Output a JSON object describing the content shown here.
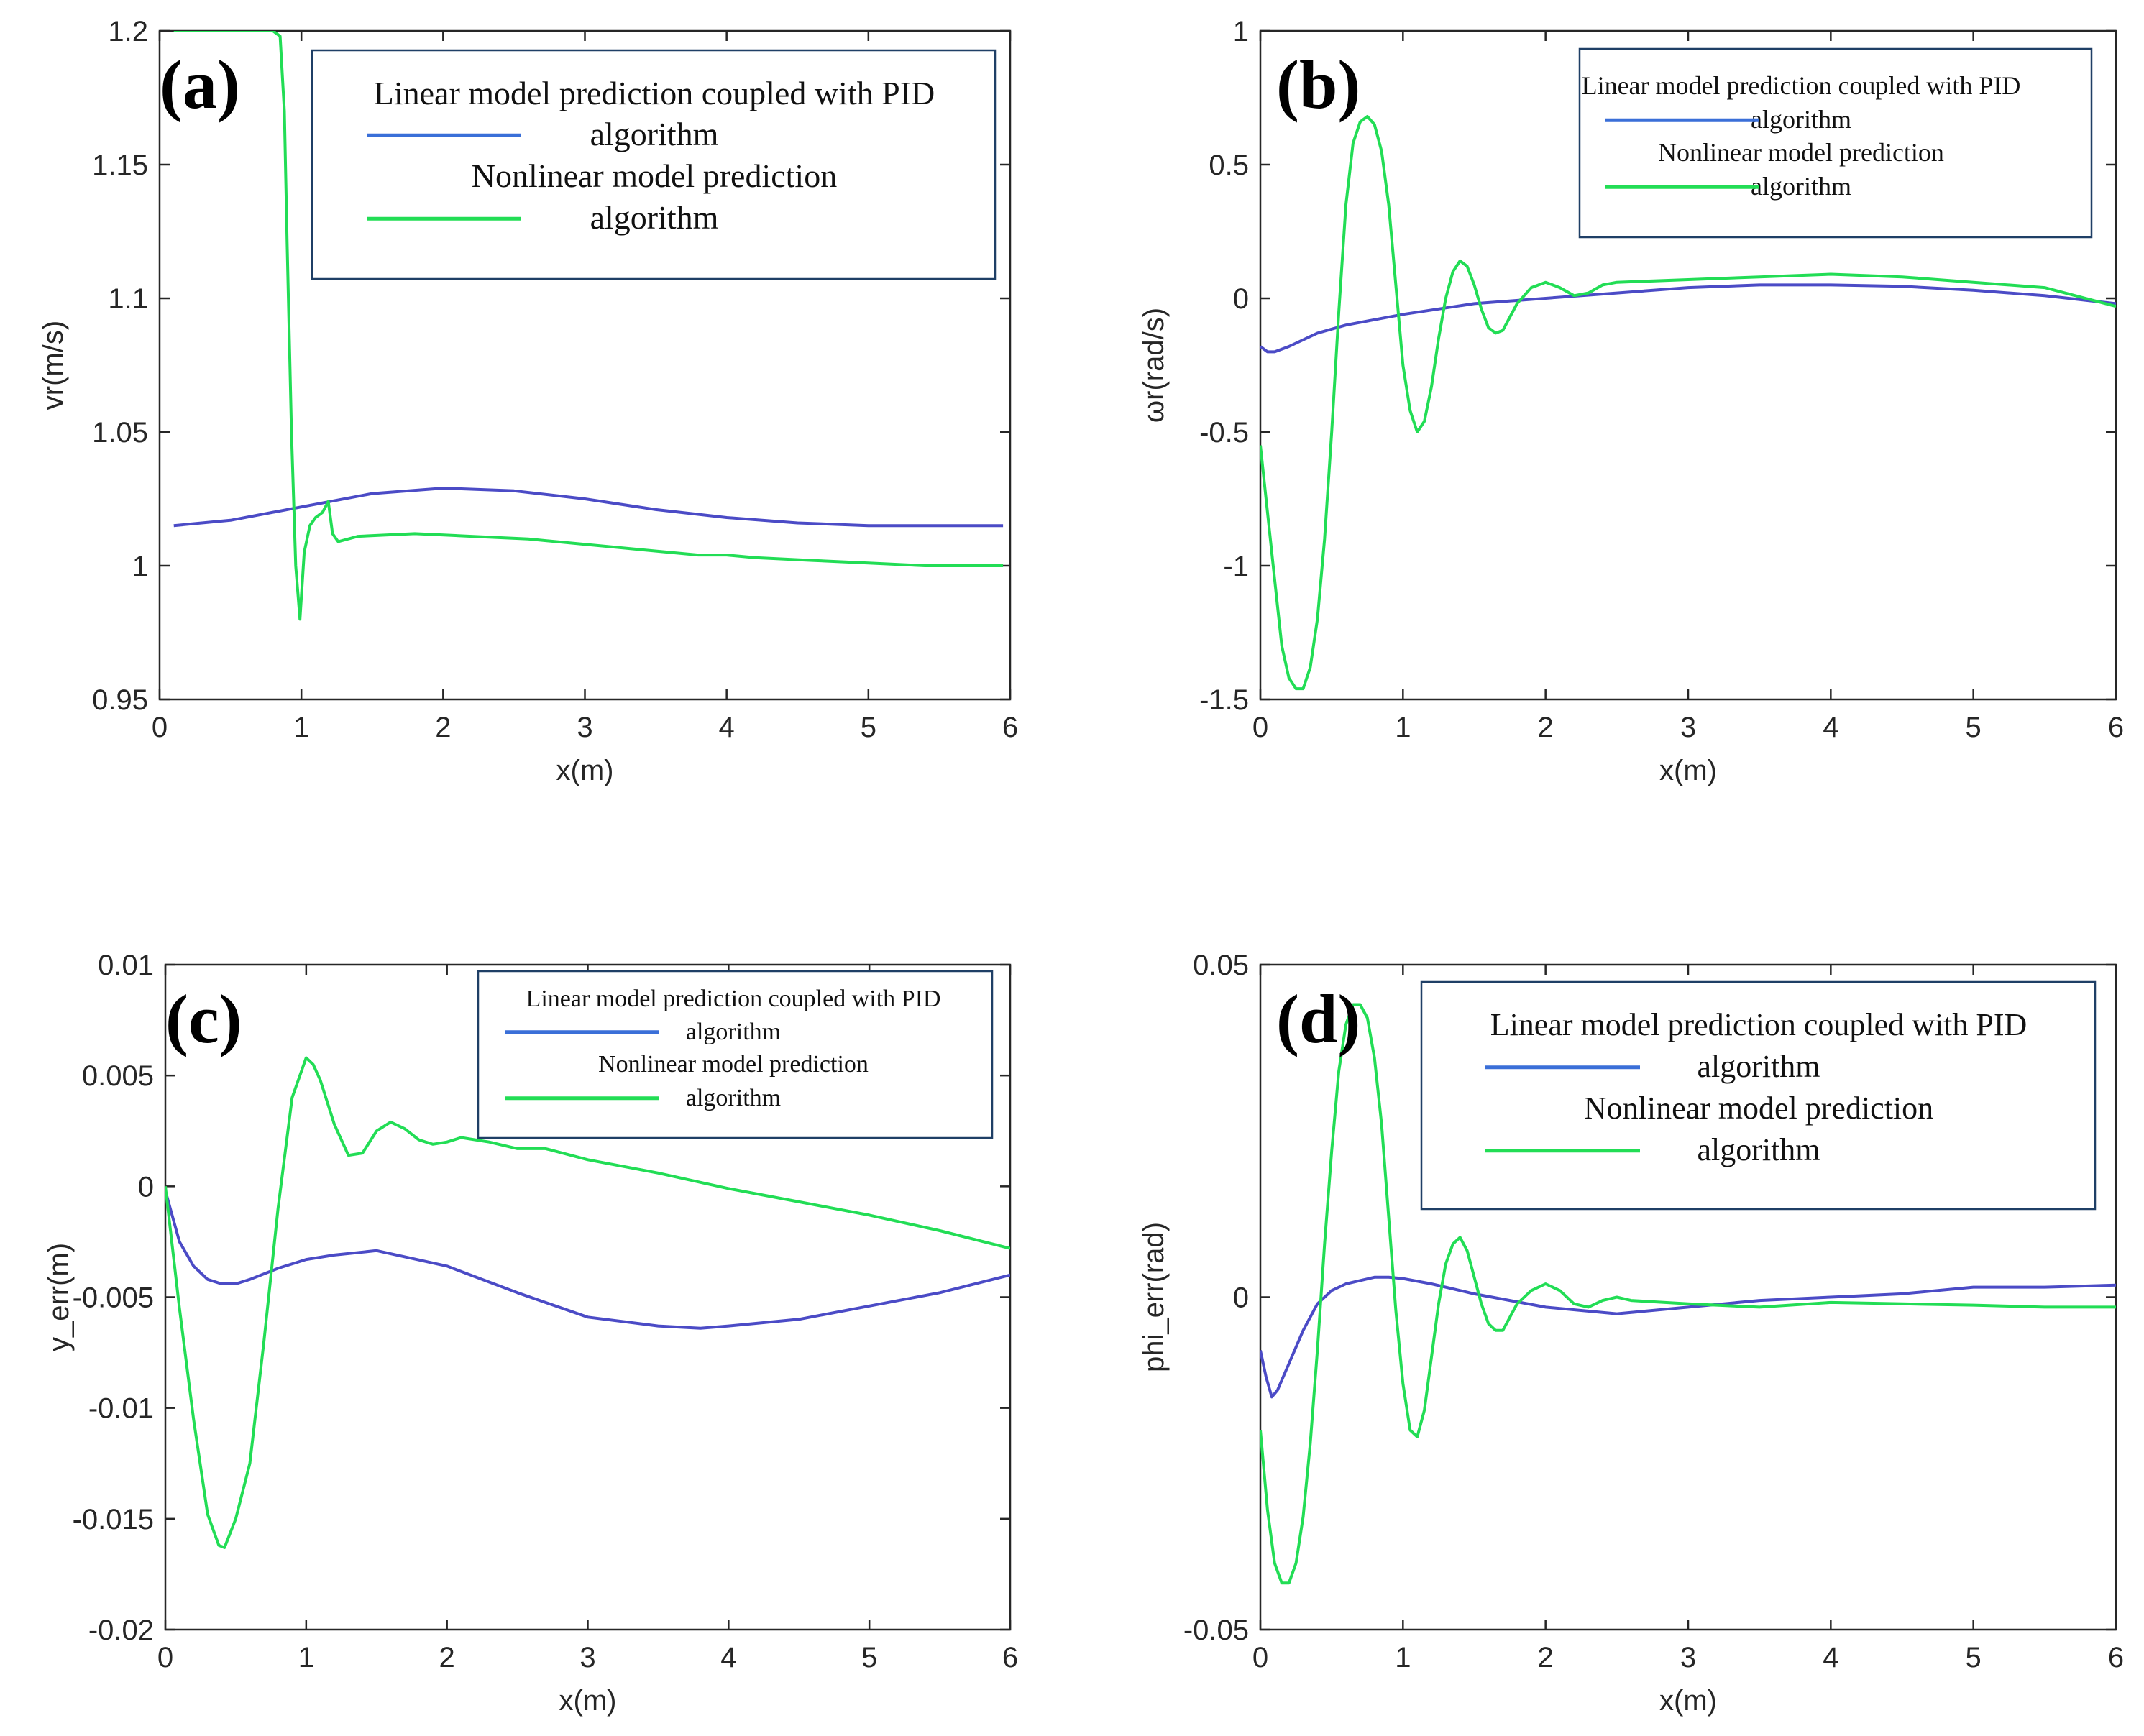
{
  "colors": {
    "linear": "#4b4bc6",
    "nonlinear": "#22dd55",
    "legend_line": "#3a6fd8",
    "legend_border": "#1f3f66"
  },
  "chart_data": [
    {
      "type": "line",
      "panel_label": "(a)",
      "xlabel": "x(m)",
      "ylabel": "vr(m/s)",
      "xlim": [
        0,
        6
      ],
      "ylim": [
        0.95,
        1.2
      ],
      "xticks": [
        "0",
        "1",
        "2",
        "3",
        "4",
        "5",
        "6"
      ],
      "yticks": [
        "0.95",
        "1",
        "1.05",
        "1.1",
        "1.15",
        "1.2"
      ],
      "legend": {
        "line1": "Linear model prediction coupled with PID",
        "line2": "algorithm",
        "line3": "Nonlinear model prediction",
        "line4": "algorithm"
      },
      "series": [
        {
          "name": "Linear model prediction coupled with PID algorithm",
          "color": "linear",
          "x": [
            0.1,
            0.5,
            1.0,
            1.5,
            2.0,
            2.5,
            3.0,
            3.5,
            4.0,
            4.5,
            5.0,
            5.5,
            5.95
          ],
          "y": [
            1.015,
            1.017,
            1.022,
            1.027,
            1.029,
            1.028,
            1.025,
            1.021,
            1.018,
            1.016,
            1.015,
            1.015,
            1.015
          ]
        },
        {
          "name": "Nonlinear model prediction algorithm",
          "color": "nonlinear",
          "x": [
            0.1,
            0.8,
            0.85,
            0.88,
            0.9,
            0.93,
            0.96,
            0.99,
            1.02,
            1.06,
            1.1,
            1.15,
            1.19,
            1.22,
            1.26,
            1.4,
            1.8,
            2.2,
            2.6,
            3.0,
            3.4,
            3.8,
            4.0,
            4.2,
            4.6,
            5.0,
            5.4,
            5.95
          ],
          "y": [
            1.2,
            1.2,
            1.198,
            1.17,
            1.12,
            1.05,
            1.0,
            0.98,
            1.005,
            1.015,
            1.018,
            1.02,
            1.024,
            1.012,
            1.009,
            1.011,
            1.012,
            1.011,
            1.01,
            1.008,
            1.006,
            1.004,
            1.004,
            1.003,
            1.002,
            1.001,
            1.0,
            1.0
          ]
        }
      ]
    },
    {
      "type": "line",
      "panel_label": "(b)",
      "xlabel": "x(m)",
      "ylabel": "ωr(rad/s)",
      "xlim": [
        0,
        6
      ],
      "ylim": [
        -1.5,
        1
      ],
      "xticks": [
        "0",
        "1",
        "2",
        "3",
        "4",
        "5",
        "6"
      ],
      "yticks": [
        "-1.5",
        "-1",
        "-0.5",
        "0",
        "0.5",
        "1"
      ],
      "legend": {
        "line1": "Linear model prediction coupled with PID",
        "line2": "algorithm",
        "line3": "Nonlinear model prediction",
        "line4": "algorithm"
      },
      "series": [
        {
          "name": "Linear model prediction coupled with PID algorithm",
          "color": "linear",
          "x": [
            0.0,
            0.05,
            0.1,
            0.2,
            0.4,
            0.6,
            1.0,
            1.5,
            2.0,
            2.5,
            3.0,
            3.5,
            4.0,
            4.5,
            5.0,
            5.5,
            6.0
          ],
          "y": [
            -0.18,
            -0.2,
            -0.2,
            -0.18,
            -0.13,
            -0.1,
            -0.06,
            -0.02,
            0.0,
            0.02,
            0.04,
            0.05,
            0.05,
            0.045,
            0.03,
            0.01,
            -0.02
          ]
        },
        {
          "name": "Nonlinear model prediction algorithm",
          "color": "nonlinear",
          "x": [
            0.0,
            0.05,
            0.1,
            0.15,
            0.2,
            0.25,
            0.3,
            0.35,
            0.4,
            0.45,
            0.5,
            0.55,
            0.6,
            0.65,
            0.7,
            0.75,
            0.8,
            0.85,
            0.9,
            0.95,
            1.0,
            1.05,
            1.1,
            1.15,
            1.2,
            1.25,
            1.3,
            1.35,
            1.4,
            1.45,
            1.5,
            1.55,
            1.6,
            1.65,
            1.7,
            1.75,
            1.8,
            1.9,
            2.0,
            2.1,
            2.2,
            2.3,
            2.4,
            2.5,
            3.0,
            3.5,
            4.0,
            4.5,
            5.0,
            5.5,
            6.0
          ],
          "y": [
            -0.55,
            -0.8,
            -1.05,
            -1.3,
            -1.42,
            -1.46,
            -1.46,
            -1.38,
            -1.2,
            -0.9,
            -0.5,
            -0.05,
            0.35,
            0.58,
            0.66,
            0.68,
            0.65,
            0.55,
            0.35,
            0.05,
            -0.25,
            -0.42,
            -0.5,
            -0.46,
            -0.33,
            -0.15,
            0.0,
            0.1,
            0.14,
            0.12,
            0.05,
            -0.04,
            -0.11,
            -0.13,
            -0.12,
            -0.07,
            -0.02,
            0.04,
            0.06,
            0.04,
            0.01,
            0.02,
            0.05,
            0.06,
            0.07,
            0.08,
            0.09,
            0.08,
            0.06,
            0.04,
            -0.03
          ]
        }
      ]
    },
    {
      "type": "line",
      "panel_label": "(c)",
      "xlabel": "x(m)",
      "ylabel": "y_err(m)",
      "xlim": [
        0,
        6
      ],
      "ylim": [
        -0.02,
        0.01
      ],
      "xticks": [
        "0",
        "1",
        "2",
        "3",
        "4",
        "5",
        "6"
      ],
      "yticks": [
        "-0.02",
        "-0.015",
        "-0.01",
        "-0.005",
        "0",
        "0.005",
        "0.01"
      ],
      "legend": {
        "line1": "Linear model prediction coupled with PID",
        "line2": "algorithm",
        "line3": "Nonlinear model prediction",
        "line4": "algorithm"
      },
      "series": [
        {
          "name": "Linear model prediction coupled with PID algorithm",
          "color": "linear",
          "x": [
            0.0,
            0.1,
            0.2,
            0.3,
            0.4,
            0.5,
            0.6,
            0.8,
            1.0,
            1.2,
            1.5,
            2.0,
            2.5,
            3.0,
            3.5,
            3.8,
            4.0,
            4.5,
            5.0,
            5.5,
            6.0
          ],
          "y": [
            -0.0002,
            -0.0025,
            -0.0036,
            -0.0042,
            -0.0044,
            -0.0044,
            -0.0042,
            -0.0037,
            -0.0033,
            -0.0031,
            -0.0029,
            -0.0036,
            -0.0048,
            -0.0059,
            -0.0063,
            -0.0064,
            -0.0063,
            -0.006,
            -0.0054,
            -0.0048,
            -0.004
          ]
        },
        {
          "name": "Nonlinear model prediction algorithm",
          "color": "nonlinear",
          "x": [
            0.0,
            0.1,
            0.2,
            0.3,
            0.38,
            0.42,
            0.5,
            0.6,
            0.7,
            0.8,
            0.9,
            1.0,
            1.05,
            1.1,
            1.2,
            1.3,
            1.4,
            1.5,
            1.6,
            1.7,
            1.8,
            1.9,
            2.0,
            2.1,
            2.3,
            2.5,
            2.7,
            3.0,
            3.5,
            4.0,
            4.5,
            5.0,
            5.5,
            6.0
          ],
          "y": [
            0.0,
            -0.0055,
            -0.0105,
            -0.0148,
            -0.0162,
            -0.0163,
            -0.015,
            -0.0125,
            -0.007,
            -0.001,
            0.004,
            0.0058,
            0.0055,
            0.0048,
            0.0028,
            0.0014,
            0.0015,
            0.0025,
            0.0029,
            0.0026,
            0.0021,
            0.0019,
            0.002,
            0.0022,
            0.002,
            0.0017,
            0.0017,
            0.0012,
            0.0006,
            -0.0001,
            -0.0007,
            -0.0013,
            -0.002,
            -0.0028
          ]
        }
      ]
    },
    {
      "type": "line",
      "panel_label": "(d)",
      "xlabel": "x(m)",
      "ylabel": "phi_err(rad)",
      "xlim": [
        0,
        6
      ],
      "ylim": [
        -0.05,
        0.05
      ],
      "xticks": [
        "0",
        "1",
        "2",
        "3",
        "4",
        "5",
        "6"
      ],
      "yticks": [
        "-0.05",
        "0",
        "0.05"
      ],
      "legend": {
        "line1": "Linear model prediction coupled with PID",
        "line2": "algorithm",
        "line3": "Nonlinear model prediction",
        "line4": "algorithm"
      },
      "series": [
        {
          "name": "Linear model prediction coupled with PID algorithm",
          "color": "linear",
          "x": [
            0.0,
            0.04,
            0.08,
            0.12,
            0.2,
            0.3,
            0.4,
            0.5,
            0.6,
            0.8,
            0.9,
            1.0,
            1.2,
            1.5,
            2.0,
            2.5,
            3.0,
            3.5,
            4.0,
            4.5,
            5.0,
            5.5,
            6.0
          ],
          "y": [
            -0.008,
            -0.012,
            -0.015,
            -0.014,
            -0.01,
            -0.005,
            -0.001,
            0.001,
            0.002,
            0.003,
            0.003,
            0.0028,
            0.002,
            0.0005,
            -0.0015,
            -0.0025,
            -0.0015,
            -0.0005,
            0.0,
            0.0005,
            0.0015,
            0.0015,
            0.0018
          ]
        },
        {
          "name": "Nonlinear model prediction algorithm",
          "color": "nonlinear",
          "x": [
            0.0,
            0.05,
            0.1,
            0.15,
            0.2,
            0.25,
            0.3,
            0.35,
            0.4,
            0.45,
            0.5,
            0.55,
            0.6,
            0.65,
            0.7,
            0.75,
            0.8,
            0.85,
            0.9,
            0.95,
            1.0,
            1.05,
            1.1,
            1.15,
            1.2,
            1.25,
            1.3,
            1.35,
            1.4,
            1.45,
            1.5,
            1.55,
            1.6,
            1.65,
            1.7,
            1.75,
            1.8,
            1.9,
            2.0,
            2.1,
            2.2,
            2.3,
            2.4,
            2.5,
            2.6,
            3.0,
            3.5,
            4.0,
            4.5,
            5.0,
            5.5,
            6.0
          ],
          "y": [
            -0.02,
            -0.032,
            -0.04,
            -0.043,
            -0.043,
            -0.04,
            -0.033,
            -0.022,
            -0.008,
            0.008,
            0.022,
            0.034,
            0.041,
            0.044,
            0.044,
            0.042,
            0.036,
            0.026,
            0.012,
            -0.002,
            -0.013,
            -0.02,
            -0.021,
            -0.017,
            -0.009,
            -0.001,
            0.005,
            0.008,
            0.009,
            0.007,
            0.003,
            -0.001,
            -0.004,
            -0.005,
            -0.005,
            -0.003,
            -0.001,
            0.001,
            0.002,
            0.001,
            -0.001,
            -0.0015,
            -0.0005,
            0.0,
            -0.0005,
            -0.001,
            -0.0015,
            -0.0008,
            -0.001,
            -0.0012,
            -0.0015,
            -0.0015
          ]
        }
      ]
    }
  ]
}
